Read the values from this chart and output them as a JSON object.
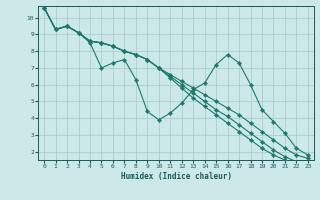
{
  "background_color": "#cce8e8",
  "grid_color": "#aacfcf",
  "line_color": "#1a7a6e",
  "xlabel": "Humidex (Indice chaleur)",
  "ylim": [
    1.5,
    10.7
  ],
  "xlim": [
    -0.5,
    23.5
  ],
  "yticks": [
    2,
    3,
    4,
    5,
    6,
    7,
    8,
    9,
    10
  ],
  "xticks": [
    0,
    1,
    2,
    3,
    4,
    5,
    6,
    7,
    8,
    9,
    10,
    11,
    12,
    13,
    14,
    15,
    16,
    17,
    18,
    19,
    20,
    21,
    22,
    23
  ],
  "series": [
    [
      10.6,
      9.3,
      9.5,
      9.1,
      8.5,
      7.0,
      7.3,
      7.5,
      6.3,
      4.4,
      3.9,
      4.3,
      4.9,
      5.7,
      6.1,
      7.2,
      7.8,
      7.3,
      6.0,
      4.5,
      3.8,
      3.1,
      2.2,
      1.8
    ],
    [
      10.6,
      9.3,
      9.5,
      9.1,
      8.6,
      8.5,
      8.3,
      8.0,
      7.8,
      7.5,
      7.0,
      6.6,
      6.2,
      5.8,
      5.4,
      5.0,
      4.6,
      4.2,
      3.7,
      3.2,
      2.7,
      2.2,
      1.8,
      1.6
    ],
    [
      10.6,
      9.3,
      9.5,
      9.1,
      8.6,
      8.5,
      8.3,
      8.0,
      7.8,
      7.5,
      7.0,
      6.5,
      6.0,
      5.5,
      5.0,
      4.5,
      4.1,
      3.6,
      3.1,
      2.6,
      2.1,
      1.7,
      1.4,
      1.2
    ],
    [
      10.6,
      9.3,
      9.5,
      9.1,
      8.6,
      8.5,
      8.3,
      8.0,
      7.8,
      7.5,
      7.0,
      6.4,
      5.8,
      5.2,
      4.7,
      4.2,
      3.7,
      3.2,
      2.7,
      2.2,
      1.8,
      1.5,
      1.3,
      1.1
    ]
  ]
}
